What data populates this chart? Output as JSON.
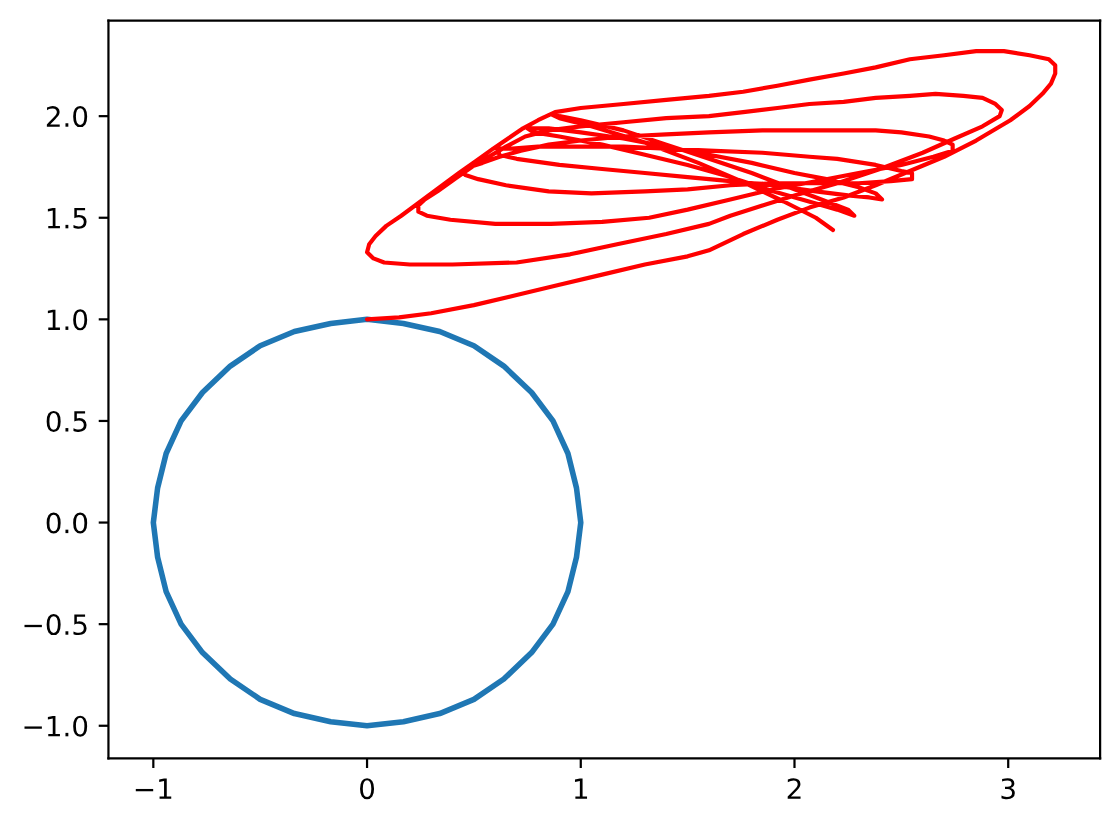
{
  "chart_data": {
    "type": "line",
    "xlim": [
      -1.21,
      3.43
    ],
    "ylim": [
      -1.16,
      2.47
    ],
    "xticks": [
      {
        "value": -1,
        "label": "−1"
      },
      0,
      1,
      2,
      3
    ],
    "yticks": [
      {
        "value": -1.0,
        "label": "−1.0"
      },
      {
        "value": -0.5,
        "label": "−0.5"
      },
      {
        "value": 0,
        "label": "0.0"
      },
      {
        "value": 0.5,
        "label": "0.5"
      },
      {
        "value": 1,
        "label": "1.0"
      },
      {
        "value": 1.5,
        "label": "1.5"
      },
      {
        "value": 2,
        "label": "2.0"
      }
    ],
    "series": [
      {
        "color": "#1f77b4",
        "x": [
          1,
          0.98,
          0.94,
          0.87,
          0.77,
          0.64,
          0.5,
          0.34,
          0.17,
          0,
          -0.17,
          -0.34,
          -0.5,
          -0.64,
          -0.77,
          -0.87,
          -0.94,
          -0.98,
          -1,
          -0.98,
          -0.94,
          -0.87,
          -0.77,
          -0.64,
          -0.5,
          -0.34,
          -0.17,
          0,
          0.17,
          0.34,
          0.5,
          0.64,
          0.77,
          0.87,
          0.94,
          0.98,
          1,
          0.98
        ],
        "values": [
          0,
          0.17,
          0.34,
          0.5,
          0.64,
          0.77,
          0.87,
          0.94,
          0.98,
          1,
          0.98,
          0.94,
          0.87,
          0.77,
          0.64,
          0.5,
          0.34,
          0.17,
          0,
          -0.17,
          -0.34,
          -0.5,
          -0.64,
          -0.77,
          -0.87,
          -0.94,
          -0.98,
          -1,
          -0.98,
          -0.94,
          -0.87,
          -0.77,
          -0.64,
          -0.5,
          -0.34,
          -0.17,
          0,
          0.17
        ]
      },
      {
        "color": "#ff0000",
        "x": [
          0,
          0.15,
          0.3,
          0.5,
          0.7,
          0.9,
          1.1,
          1.3,
          1.5,
          1.6,
          1.76,
          1.92,
          2.07,
          2.23,
          2.38,
          2.54,
          2.7,
          2.85,
          3.01,
          3.1,
          3.16,
          3.2,
          3.22,
          3.22,
          3.19,
          3.1,
          2.98,
          2.85,
          2.7,
          2.54,
          2.38,
          2.23,
          2.07,
          1.92,
          1.76,
          1.6,
          1.4,
          1.2,
          1.0,
          0.88,
          0.8,
          0.73,
          0.66,
          0.59,
          0.51,
          0.43,
          0.34,
          0.25,
          0.16,
          0.09,
          0.04,
          0.01,
          0.0,
          0.03,
          0.08,
          0.2,
          0.4,
          0.7,
          0.95,
          1.17,
          1.4,
          1.6,
          1.7,
          1.85,
          2.0,
          2.2,
          2.4,
          2.6,
          2.75,
          2.88,
          2.96,
          2.97,
          2.94,
          2.88,
          2.79,
          2.66,
          2.54,
          2.38,
          2.23,
          2.07,
          1.92,
          1.76,
          1.6,
          1.4,
          1.2,
          1.0,
          0.85,
          0.74,
          0.65,
          0.57,
          0.49,
          0.41,
          0.33,
          0.27,
          0.24,
          0.24,
          0.28,
          0.39,
          0.6,
          0.86,
          1.1,
          1.32,
          1.5,
          1.7,
          1.9,
          2.1,
          2.3,
          2.5,
          2.65,
          2.74,
          2.74,
          2.7,
          2.63,
          2.5,
          2.38,
          2.2,
          2.07,
          1.85,
          1.6,
          1.4,
          1.2,
          1.0,
          0.85,
          0.72,
          0.62,
          0.54,
          0.48,
          0.45,
          0.46,
          0.52,
          0.65,
          0.85,
          1.05,
          1.3,
          1.5,
          1.7,
          1.9,
          2.1,
          2.3,
          2.45,
          2.55,
          2.55,
          2.5,
          2.38,
          2.2,
          2.07,
          1.85,
          1.6,
          1.4,
          1.2,
          1.0,
          0.8,
          0.68,
          0.61,
          0.62,
          0.7,
          0.9,
          1.1,
          1.3,
          1.5,
          1.7,
          1.9,
          2.1,
          2.25,
          2.35,
          2.41,
          2.38,
          2.3,
          2.15,
          2.0,
          1.8,
          1.6,
          1.4,
          1.2,
          1.0,
          0.85,
          0.75,
          0.78,
          0.9,
          1.1,
          1.3,
          1.5,
          1.7,
          1.9,
          2.1,
          2.2,
          2.28,
          2.25,
          2.15,
          2.0,
          1.8,
          1.6,
          1.4,
          1.2,
          1.0,
          0.9,
          0.86,
          0.9,
          1.05,
          1.3,
          1.55,
          1.75,
          1.95,
          2.1,
          2.18
        ],
        "values": [
          1.0,
          1.01,
          1.03,
          1.07,
          1.12,
          1.17,
          1.22,
          1.27,
          1.31,
          1.34,
          1.42,
          1.49,
          1.55,
          1.6,
          1.66,
          1.73,
          1.8,
          1.88,
          1.98,
          2.05,
          2.11,
          2.16,
          2.21,
          2.25,
          2.28,
          2.3,
          2.32,
          2.32,
          2.3,
          2.28,
          2.24,
          2.21,
          2.18,
          2.15,
          2.12,
          2.1,
          2.08,
          2.06,
          2.04,
          2.02,
          1.98,
          1.94,
          1.89,
          1.84,
          1.78,
          1.72,
          1.65,
          1.58,
          1.51,
          1.46,
          1.41,
          1.37,
          1.33,
          1.3,
          1.28,
          1.27,
          1.27,
          1.28,
          1.32,
          1.37,
          1.42,
          1.47,
          1.51,
          1.56,
          1.61,
          1.67,
          1.74,
          1.82,
          1.89,
          1.95,
          2.0,
          2.03,
          2.06,
          2.09,
          2.1,
          2.11,
          2.1,
          2.09,
          2.07,
          2.06,
          2.04,
          2.02,
          2.0,
          1.99,
          1.97,
          1.95,
          1.93,
          1.9,
          1.85,
          1.8,
          1.75,
          1.69,
          1.63,
          1.59,
          1.56,
          1.53,
          1.51,
          1.49,
          1.47,
          1.47,
          1.48,
          1.5,
          1.54,
          1.59,
          1.64,
          1.68,
          1.72,
          1.76,
          1.8,
          1.83,
          1.86,
          1.88,
          1.9,
          1.92,
          1.93,
          1.93,
          1.93,
          1.93,
          1.92,
          1.91,
          1.9,
          1.88,
          1.86,
          1.83,
          1.8,
          1.77,
          1.75,
          1.73,
          1.71,
          1.69,
          1.66,
          1.63,
          1.62,
          1.63,
          1.64,
          1.66,
          1.67,
          1.67,
          1.67,
          1.68,
          1.69,
          1.72,
          1.73,
          1.76,
          1.79,
          1.8,
          1.82,
          1.83,
          1.84,
          1.85,
          1.85,
          1.85,
          1.84,
          1.84,
          1.81,
          1.79,
          1.76,
          1.74,
          1.72,
          1.7,
          1.68,
          1.66,
          1.63,
          1.61,
          1.6,
          1.59,
          1.62,
          1.65,
          1.69,
          1.72,
          1.77,
          1.81,
          1.85,
          1.89,
          1.92,
          1.94,
          1.94,
          1.92,
          1.9,
          1.86,
          1.81,
          1.76,
          1.7,
          1.63,
          1.57,
          1.54,
          1.51,
          1.54,
          1.58,
          1.64,
          1.72,
          1.79,
          1.86,
          1.93,
          1.98,
          2.0,
          2.01,
          1.99,
          1.95,
          1.87,
          1.77,
          1.68,
          1.58,
          1.5,
          1.44
        ]
      }
    ]
  }
}
